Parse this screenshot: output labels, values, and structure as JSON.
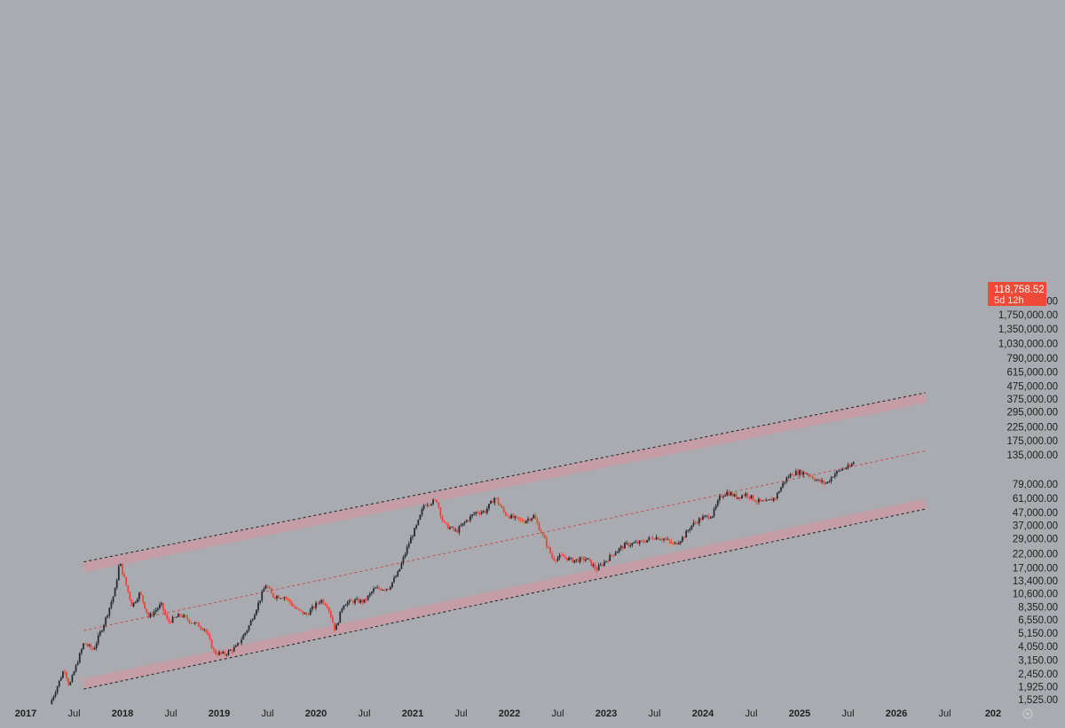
{
  "chart_data": {
    "type": "candlestick",
    "y_scale": "log",
    "colors": {
      "background": "#a9abb0",
      "up": "#2a2c31",
      "down": "#e8463a",
      "channel_band": "#c99aa6",
      "price_tag": "#ef4a38"
    },
    "y_ticks": [
      "2,250,000.00",
      "1,750,000.00",
      "1,350,000.00",
      "1,030,000.00",
      "790,000.00",
      "615,000.00",
      "475,000.00",
      "375,000.00",
      "295,000.00",
      "225,000.00",
      "175,000.00",
      "135,000.00",
      "79,000.00",
      "61,000.00",
      "47,000.00",
      "37,000.00",
      "29,000.00",
      "22,000.00",
      "17,000.00",
      "13,400.00",
      "10,600.00",
      "8,350.00",
      "6,550.00",
      "5,150.00",
      "4,050.00",
      "3,150.00",
      "2,450.00",
      "1,925.00",
      "1,525.00"
    ],
    "x_ticks": [
      {
        "label": "2017",
        "year": true,
        "t": 2017.0
      },
      {
        "label": "Jul",
        "year": false,
        "t": 2017.5
      },
      {
        "label": "2018",
        "year": true,
        "t": 2018.0
      },
      {
        "label": "Jul",
        "year": false,
        "t": 2018.5
      },
      {
        "label": "2019",
        "year": true,
        "t": 2019.0
      },
      {
        "label": "Jul",
        "year": false,
        "t": 2019.5
      },
      {
        "label": "2020",
        "year": true,
        "t": 2020.0
      },
      {
        "label": "Jul",
        "year": false,
        "t": 2020.5
      },
      {
        "label": "2021",
        "year": true,
        "t": 2021.0
      },
      {
        "label": "Jul",
        "year": false,
        "t": 2021.5
      },
      {
        "label": "2022",
        "year": true,
        "t": 2022.0
      },
      {
        "label": "Jul",
        "year": false,
        "t": 2022.5
      },
      {
        "label": "2023",
        "year": true,
        "t": 2023.0
      },
      {
        "label": "Jul",
        "year": false,
        "t": 2023.5
      },
      {
        "label": "2024",
        "year": true,
        "t": 2024.0
      },
      {
        "label": "Jul",
        "year": false,
        "t": 2024.5
      },
      {
        "label": "2025",
        "year": true,
        "t": 2025.0
      },
      {
        "label": "Jul",
        "year": false,
        "t": 2025.5
      },
      {
        "label": "2026",
        "year": true,
        "t": 2026.0
      },
      {
        "label": "Jul",
        "year": false,
        "t": 2026.5
      },
      {
        "label": "202",
        "year": true,
        "t": 2027.0
      }
    ],
    "price_anchors": [
      [
        2017.25,
        1400
      ],
      [
        2017.4,
        2700
      ],
      [
        2017.45,
        1950
      ],
      [
        2017.6,
        4300
      ],
      [
        2017.7,
        3800
      ],
      [
        2017.82,
        6500
      ],
      [
        2017.92,
        11000
      ],
      [
        2017.97,
        19000
      ],
      [
        2018.05,
        11500
      ],
      [
        2018.1,
        8500
      ],
      [
        2018.18,
        10800
      ],
      [
        2018.27,
        6900
      ],
      [
        2018.4,
        8700
      ],
      [
        2018.47,
        6300
      ],
      [
        2018.6,
        7200
      ],
      [
        2018.7,
        6400
      ],
      [
        2018.85,
        5600
      ],
      [
        2018.95,
        3600
      ],
      [
        2019.05,
        3500
      ],
      [
        2019.18,
        4000
      ],
      [
        2019.3,
        5700
      ],
      [
        2019.42,
        9500
      ],
      [
        2019.48,
        12500
      ],
      [
        2019.55,
        10200
      ],
      [
        2019.68,
        10000
      ],
      [
        2019.8,
        7900
      ],
      [
        2019.9,
        7200
      ],
      [
        2020.05,
        9500
      ],
      [
        2020.12,
        8600
      ],
      [
        2020.2,
        5400
      ],
      [
        2020.28,
        8800
      ],
      [
        2020.4,
        9300
      ],
      [
        2020.5,
        9200
      ],
      [
        2020.6,
        11500
      ],
      [
        2020.75,
        11800
      ],
      [
        2020.85,
        15500
      ],
      [
        2020.97,
        28000
      ],
      [
        2021.05,
        38000
      ],
      [
        2021.12,
        55000
      ],
      [
        2021.25,
        58000
      ],
      [
        2021.32,
        38000
      ],
      [
        2021.45,
        33000
      ],
      [
        2021.55,
        40000
      ],
      [
        2021.65,
        47000
      ],
      [
        2021.75,
        48000
      ],
      [
        2021.85,
        62000
      ],
      [
        2021.95,
        46000
      ],
      [
        2022.05,
        42000
      ],
      [
        2022.15,
        40000
      ],
      [
        2022.25,
        44000
      ],
      [
        2022.35,
        30000
      ],
      [
        2022.45,
        20000
      ],
      [
        2022.55,
        21000
      ],
      [
        2022.65,
        19500
      ],
      [
        2022.8,
        20000
      ],
      [
        2022.9,
        16500
      ],
      [
        2023.0,
        19500
      ],
      [
        2023.1,
        23000
      ],
      [
        2023.2,
        26000
      ],
      [
        2023.35,
        27000
      ],
      [
        2023.5,
        30000
      ],
      [
        2023.6,
        29000
      ],
      [
        2023.7,
        26000
      ],
      [
        2023.8,
        30000
      ],
      [
        2023.88,
        37000
      ],
      [
        2023.98,
        42000
      ],
      [
        2024.1,
        45000
      ],
      [
        2024.18,
        63000
      ],
      [
        2024.25,
        68000
      ],
      [
        2024.35,
        62000
      ],
      [
        2024.45,
        66000
      ],
      [
        2024.55,
        58000
      ],
      [
        2024.65,
        56000
      ],
      [
        2024.75,
        62000
      ],
      [
        2024.85,
        85000
      ],
      [
        2024.92,
        96000
      ],
      [
        2025.0,
        98000
      ],
      [
        2025.08,
        96000
      ],
      [
        2025.18,
        84000
      ],
      [
        2025.28,
        80000
      ],
      [
        2025.35,
        94000
      ],
      [
        2025.45,
        105000
      ],
      [
        2025.52,
        108000
      ],
      [
        2025.56,
        118758
      ]
    ],
    "channel": {
      "upper_line": {
        "t": [
          2017.6,
          2026.3
        ],
        "price": [
          19000,
          420000
        ]
      },
      "mid_line": {
        "t": [
          2017.6,
          2026.3
        ],
        "price": [
          5400,
          145000
        ]
      },
      "lower_line": {
        "t": [
          2017.6,
          2026.3
        ],
        "price": [
          1850,
          50000
        ]
      }
    },
    "last_price": {
      "value": "118,758.52",
      "countdown": "5d 12h"
    }
  }
}
